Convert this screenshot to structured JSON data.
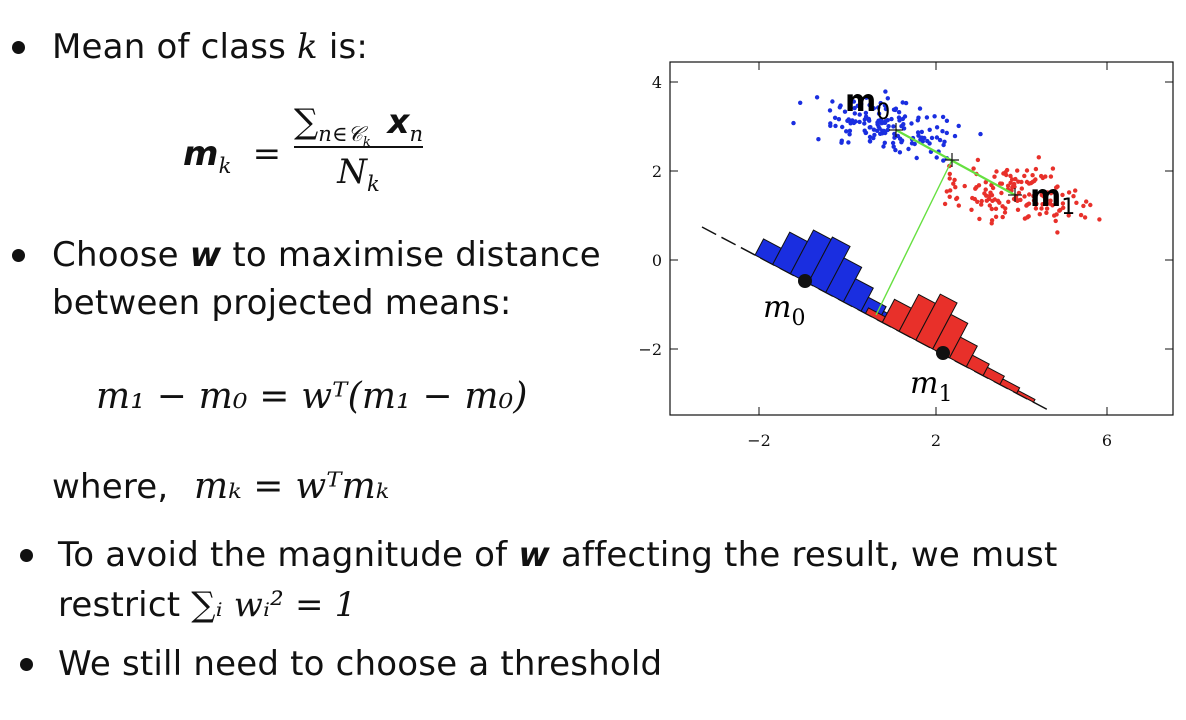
{
  "slide": {
    "bullet1": {
      "text_prefix": "Mean of class ",
      "var": "k",
      "text_suffix": " is:"
    },
    "eq1": {
      "lhs_bold": "m",
      "lhs_sub": "k",
      "equals": "=",
      "num_sum": "∑",
      "num_sub": "n∈𝒞",
      "num_subsub": "k",
      "num_x": "x",
      "num_x_sub": "n",
      "den": "N",
      "den_sub": "k"
    },
    "bullet2": {
      "line1_prefix": "Choose ",
      "line1_var": "w",
      "line1_suffix": " to maximise distance",
      "line2": "between projected means:"
    },
    "eq2": {
      "text": "m₁ − m₀ = wᵀ(m₁ − m₀)"
    },
    "where": {
      "label": "where,",
      "expr": "mₖ = wᵀmₖ"
    },
    "bullet3": {
      "line1_prefix": "To avoid the magnitude of ",
      "line1_var": "w",
      "line1_suffix": " affecting the result, we must",
      "line2_prefix": "restrict ",
      "line2_expr": "∑ᵢ wᵢ² = 1"
    },
    "bullet4": {
      "text": "We still need to choose a threshold"
    }
  },
  "figure": {
    "x_ticks": [
      "−2",
      "2",
      "6"
    ],
    "y_ticks": [
      "4",
      "2",
      "0",
      "−2"
    ],
    "labels": {
      "m0_top": "m",
      "m0_top_sub": "0",
      "m1_top": "m",
      "m1_top_sub": "1",
      "m0_proj": "m",
      "m0_proj_sub": "0",
      "m1_proj": "m",
      "m1_proj_sub": "1"
    },
    "colors": {
      "class0": "#1a2ee0",
      "class1": "#e8302a",
      "connector": "#66e040",
      "axis": "#111111"
    },
    "blue_hist": [
      0.35,
      0.7,
      0.95,
      1.0,
      0.75,
      0.5,
      0.3,
      0.2,
      0.12
    ],
    "red_hist": [
      0.12,
      0.5,
      0.8,
      1.0,
      0.75,
      0.45,
      0.25,
      0.18,
      0.12,
      0.06
    ]
  }
}
